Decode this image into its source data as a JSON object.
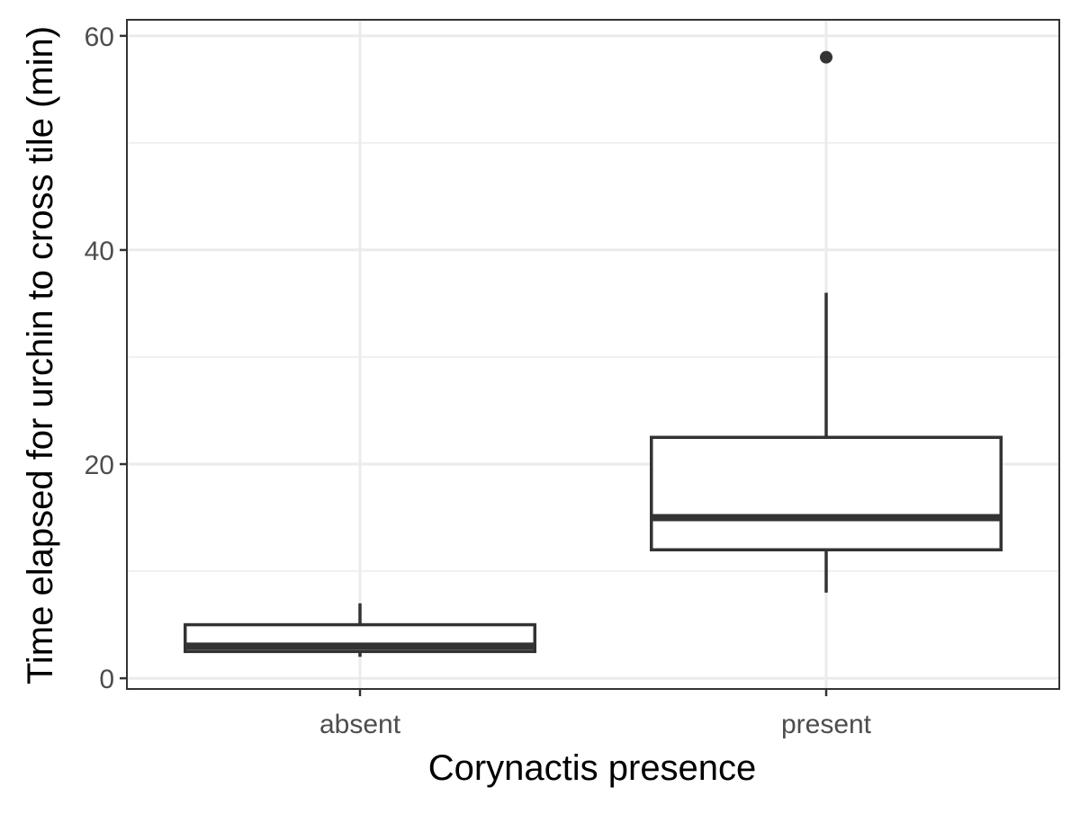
{
  "chart_data": {
    "type": "box",
    "xlabel": "Corynactis presence",
    "ylabel": "Time elapsed for urchin to cross tile (min)",
    "categories": [
      "absent",
      "present"
    ],
    "boxes": [
      {
        "category": "absent",
        "whisker_low": 2,
        "q1": 2.5,
        "median": 3,
        "q3": 5,
        "whisker_high": 7,
        "outliers": []
      },
      {
        "category": "present",
        "whisker_low": 8,
        "q1": 12,
        "median": 15,
        "q3": 22.5,
        "whisker_high": 36,
        "outliers": [
          58
        ]
      }
    ],
    "ylim": [
      -1,
      61.5
    ],
    "yticks": [
      0,
      20,
      40,
      60
    ],
    "yticks_minor": [
      10,
      30,
      50
    ],
    "grid": true,
    "legend": "none",
    "colors": {
      "box_line": "#333333",
      "box_fill": "#ffffff",
      "grid": "#ebebeb",
      "panel_border": "#333333",
      "tick_text": "#4d4d4d"
    }
  }
}
